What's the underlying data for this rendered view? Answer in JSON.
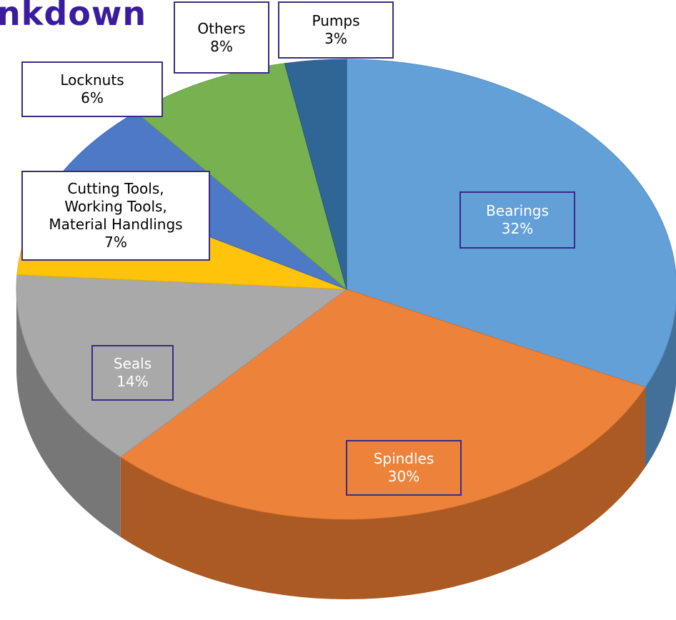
{
  "chart_data": {
    "type": "pie",
    "title": "nkdown",
    "categories": [
      "Bearings",
      "Spindles",
      "Seals",
      "Cutting Tools,\nWorking Tools,\nMaterial Handlings",
      "Locknuts",
      "Others",
      "Pumps"
    ],
    "values": [
      32,
      30,
      14,
      7,
      6,
      8,
      3
    ],
    "value_labels": [
      "32%",
      "30%",
      "14%",
      "7%",
      "6%",
      "8%",
      "3%"
    ],
    "colors": [
      "#5b9bd5",
      "#ed7d31",
      "#a5a5a5",
      "#ffc000",
      "#4472c4",
      "#70ad47",
      "#255e91"
    ]
  }
}
